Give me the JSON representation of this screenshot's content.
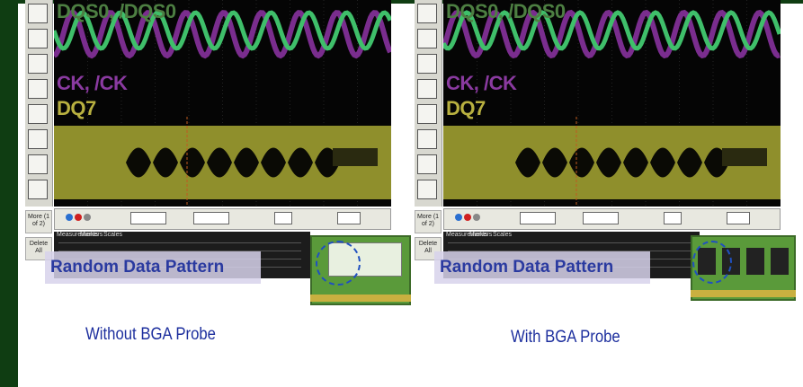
{
  "panels": [
    {
      "waveform_labels": [
        "DQS0, /DQS0",
        "CK, /CK",
        "DQ7"
      ],
      "buttons": [
        "More (1 of 2)",
        "Delete All"
      ],
      "tabs": [
        "Measurements",
        "Markers",
        "Scales"
      ],
      "overlay": "Random Data Pattern",
      "caption": "Without BGA Probe"
    },
    {
      "waveform_labels": [
        "DQS0, /DQS0",
        "CK, /CK",
        "DQ7"
      ],
      "buttons": [
        "More (1 of 2)",
        "Delete All"
      ],
      "tabs": [
        "Measurements",
        "Markers",
        "Scales"
      ],
      "overlay": "Random Data Pattern",
      "caption": "With BGA Probe"
    }
  ]
}
